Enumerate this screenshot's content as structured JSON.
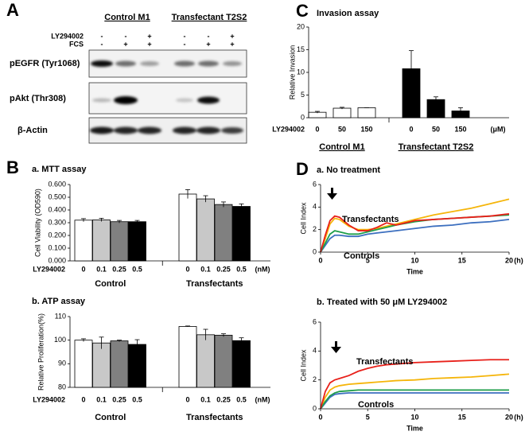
{
  "panel_labels": [
    "A",
    "B",
    "C",
    "D"
  ],
  "blot": {
    "groups": [
      "Control M1",
      "Transfectant T2S2"
    ],
    "rows": [
      {
        "label": "LY294002",
        "signs": [
          "-",
          "-",
          "+",
          "-",
          "-",
          "+"
        ]
      },
      {
        "label": "FCS",
        "signs": [
          "-",
          "+",
          "+",
          "-",
          "+",
          "+"
        ]
      }
    ],
    "bands": [
      "pEGFR (Tyr1068)",
      "pAkt (Thr308)",
      "β-Actin"
    ]
  },
  "chart_data": [
    {
      "type": "bar",
      "title": "Invasion assay",
      "ylabel": "Relative Invasion",
      "xlabel": "LY294002",
      "unit": "(μM)",
      "groups": [
        "Control M1",
        "Transfectant T2S2"
      ],
      "categories": [
        "0",
        "50",
        "150",
        "0",
        "50",
        "150"
      ],
      "values": [
        1.2,
        2.1,
        2.2,
        10.8,
        4.0,
        1.5
      ],
      "errors": [
        0.2,
        0.2,
        0,
        4.0,
        0.6,
        0.7
      ],
      "colors": [
        "#ffffff",
        "#ffffff",
        "#ffffff",
        "#000000",
        "#000000",
        "#000000"
      ],
      "ylim": [
        0,
        20
      ],
      "yticks": [
        0,
        5,
        10,
        15,
        20
      ]
    },
    {
      "type": "bar",
      "title": "a. MTT assay",
      "ylabel": "Cell Viability (OD590)",
      "xlabel": "LY294002",
      "unit": "(nM)",
      "groups": [
        "Control",
        "Transfectants"
      ],
      "categories": [
        "0",
        "0.1",
        "0.25",
        "0.5",
        "0",
        "0.1",
        "0.25",
        "0.5"
      ],
      "values": [
        0.32,
        0.322,
        0.308,
        0.308,
        0.525,
        0.487,
        0.443,
        0.428
      ],
      "errors": [
        0.012,
        0.013,
        0.01,
        0.01,
        0.035,
        0.025,
        0.02,
        0.02
      ],
      "colors": [
        "#ffffff",
        "#c8c8c8",
        "#808080",
        "#000000",
        "#ffffff",
        "#c8c8c8",
        "#808080",
        "#000000"
      ],
      "ylim": [
        0,
        0.6
      ],
      "yticks": [
        {
          "value": 0,
          "label": "0.000"
        },
        {
          "value": 0.1,
          "label": "0.100"
        },
        {
          "value": 0.2,
          "label": "0.200"
        },
        {
          "value": 0.3,
          "label": "0.300"
        },
        {
          "value": 0.4,
          "label": "0.400"
        },
        {
          "value": 0.5,
          "label": "0.500"
        },
        {
          "value": 0.6,
          "label": "0.600"
        }
      ]
    },
    {
      "type": "bar",
      "title": "b. ATP assay",
      "ylabel": "Relative Proliferation(%)",
      "xlabel": "LY294002",
      "unit": "(nM)",
      "groups": [
        "Control",
        "Transfectants"
      ],
      "categories": [
        "0",
        "0.1",
        "0.25",
        "0.5",
        "0",
        "0.1",
        "0.25",
        "0.5"
      ],
      "values": [
        100,
        98.8,
        99.7,
        98.2,
        105.8,
        102.3,
        102.1,
        99.8
      ],
      "errors": [
        0.6,
        2.5,
        0.3,
        2.0,
        0.2,
        2.3,
        0.6,
        1.2
      ],
      "colors": [
        "#ffffff",
        "#c8c8c8",
        "#808080",
        "#000000",
        "#ffffff",
        "#c8c8c8",
        "#808080",
        "#000000"
      ],
      "ylim": [
        80,
        110
      ],
      "yticks": [
        80,
        90,
        100,
        110
      ]
    },
    {
      "type": "line",
      "title": "a. No treatment",
      "xlabel": "Time",
      "xunit": "(h)",
      "ylabel": "Cell Index",
      "annotations": [
        "Transfectants",
        "Controls"
      ],
      "x": [
        0,
        0.5,
        1,
        1.5,
        2,
        3,
        4,
        5,
        6,
        7,
        8,
        10,
        12,
        14,
        16,
        18,
        20
      ],
      "series": [
        {
          "color": "#f5b50a",
          "values": [
            0,
            1.2,
            2.5,
            3.0,
            2.9,
            2.3,
            2.0,
            2.0,
            2.1,
            2.3,
            2.5,
            2.9,
            3.3,
            3.6,
            3.9,
            4.3,
            4.7
          ]
        },
        {
          "color": "#3c6fbf",
          "values": [
            0,
            0.6,
            1.2,
            1.5,
            1.5,
            1.4,
            1.4,
            1.6,
            1.7,
            1.8,
            1.9,
            2.1,
            2.3,
            2.4,
            2.6,
            2.7,
            2.9
          ]
        },
        {
          "color": "#1e9e4a",
          "values": [
            0,
            0.8,
            1.6,
            1.9,
            1.8,
            1.6,
            1.6,
            1.8,
            2.0,
            2.2,
            2.4,
            2.7,
            2.9,
            3.0,
            3.1,
            3.2,
            3.3
          ]
        },
        {
          "color": "#e8201a",
          "values": [
            0,
            1.5,
            2.8,
            3.2,
            3.1,
            2.4,
            1.9,
            1.9,
            2.2,
            2.6,
            2.4,
            2.8,
            2.9,
            3.0,
            3.1,
            3.2,
            3.4
          ]
        }
      ],
      "xlim": [
        0,
        20
      ],
      "xticks": [
        0,
        5,
        10,
        15,
        20
      ],
      "ylim": [
        0,
        6
      ],
      "yticks": [
        0,
        2,
        4,
        6
      ]
    },
    {
      "type": "line",
      "title": "b. Treated with 50 μM LY294002",
      "xlabel": "Time",
      "xunit": "(h)",
      "ylabel": "Cell Index",
      "annotations": [
        "Transfectants",
        "Controls"
      ],
      "x": [
        0,
        0.5,
        1,
        1.5,
        2,
        3,
        4,
        5,
        6,
        7,
        8,
        10,
        12,
        14,
        16,
        18,
        20
      ],
      "series": [
        {
          "color": "#f5b50a",
          "values": [
            0,
            0.8,
            1.3,
            1.5,
            1.6,
            1.7,
            1.75,
            1.8,
            1.85,
            1.9,
            1.95,
            2.0,
            2.1,
            2.15,
            2.2,
            2.3,
            2.4
          ]
        },
        {
          "color": "#3c6fbf",
          "values": [
            0,
            0.4,
            0.8,
            1.0,
            1.05,
            1.1,
            1.1,
            1.1,
            1.1,
            1.1,
            1.1,
            1.1,
            1.1,
            1.1,
            1.1,
            1.1,
            1.1
          ]
        },
        {
          "color": "#1e9e4a",
          "values": [
            0,
            0.5,
            0.9,
            1.1,
            1.2,
            1.25,
            1.3,
            1.3,
            1.3,
            1.3,
            1.3,
            1.3,
            1.3,
            1.3,
            1.3,
            1.3,
            1.3
          ]
        },
        {
          "color": "#e8201a",
          "values": [
            0,
            1.2,
            1.8,
            2.0,
            2.1,
            2.3,
            2.6,
            2.8,
            2.95,
            3.05,
            3.1,
            3.2,
            3.25,
            3.3,
            3.35,
            3.4,
            3.4
          ]
        }
      ],
      "xlim": [
        0,
        20
      ],
      "xticks": [
        0,
        5,
        10,
        15,
        20
      ],
      "ylim": [
        0,
        6
      ],
      "yticks": [
        0,
        2,
        4,
        6
      ]
    }
  ]
}
